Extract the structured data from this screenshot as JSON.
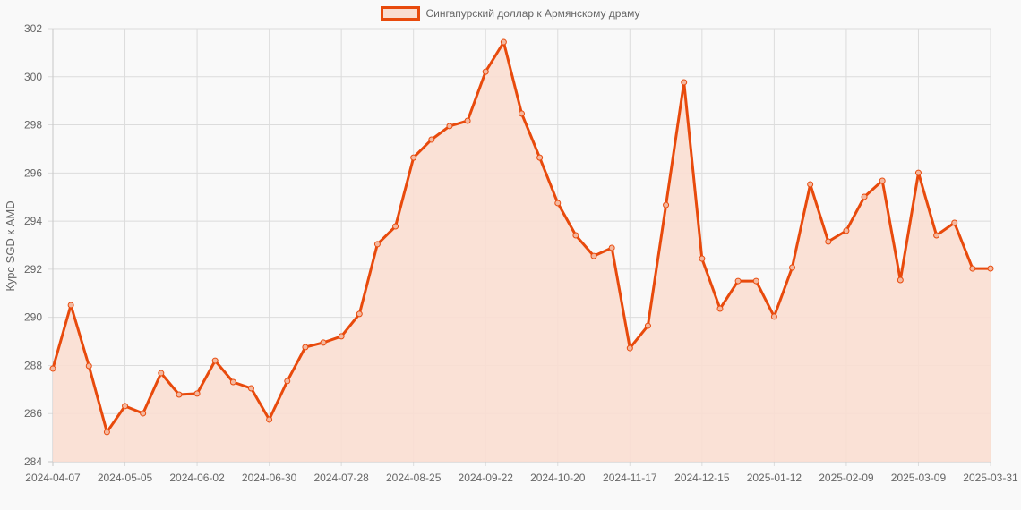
{
  "legend": {
    "label": "Сингапурский доллар к Армянскому драму",
    "color": "#e84a0c",
    "fill": "#f9ded2"
  },
  "chart_data": {
    "type": "line",
    "title": "",
    "xlabel": "",
    "ylabel": "Курс SGD к AMD",
    "ylim": [
      284,
      302
    ],
    "yticks": [
      284,
      286,
      288,
      290,
      292,
      294,
      296,
      298,
      300,
      302
    ],
    "xtick_labels": [
      "2024-04-07",
      "2024-05-05",
      "2024-06-02",
      "2024-06-30",
      "2024-07-28",
      "2024-08-25",
      "2024-09-22",
      "2024-10-20",
      "2024-11-17",
      "2024-12-15",
      "2025-01-12",
      "2025-02-09",
      "2025-03-09",
      "2025-03-31"
    ],
    "grid": true,
    "legend_position": "top",
    "fill": true,
    "series": [
      {
        "name": "Сингапурский доллар к Армянскому драму",
        "values": [
          287.87,
          290.51,
          287.98,
          285.23,
          286.31,
          286.01,
          287.68,
          286.79,
          286.83,
          288.2,
          287.31,
          287.05,
          285.75,
          287.35,
          288.76,
          288.95,
          289.21,
          290.14,
          293.04,
          293.78,
          296.64,
          297.39,
          297.95,
          298.17,
          300.21,
          301.44,
          298.47,
          296.64,
          294.75,
          293.41,
          292.55,
          292.89,
          288.72,
          289.65,
          294.67,
          299.77,
          292.44,
          290.36,
          291.51,
          291.51,
          290.03,
          292.07,
          295.53,
          293.15,
          293.6,
          295.01,
          295.68,
          291.55,
          296.01,
          293.41,
          293.93,
          292.03,
          292.03
        ]
      }
    ]
  }
}
